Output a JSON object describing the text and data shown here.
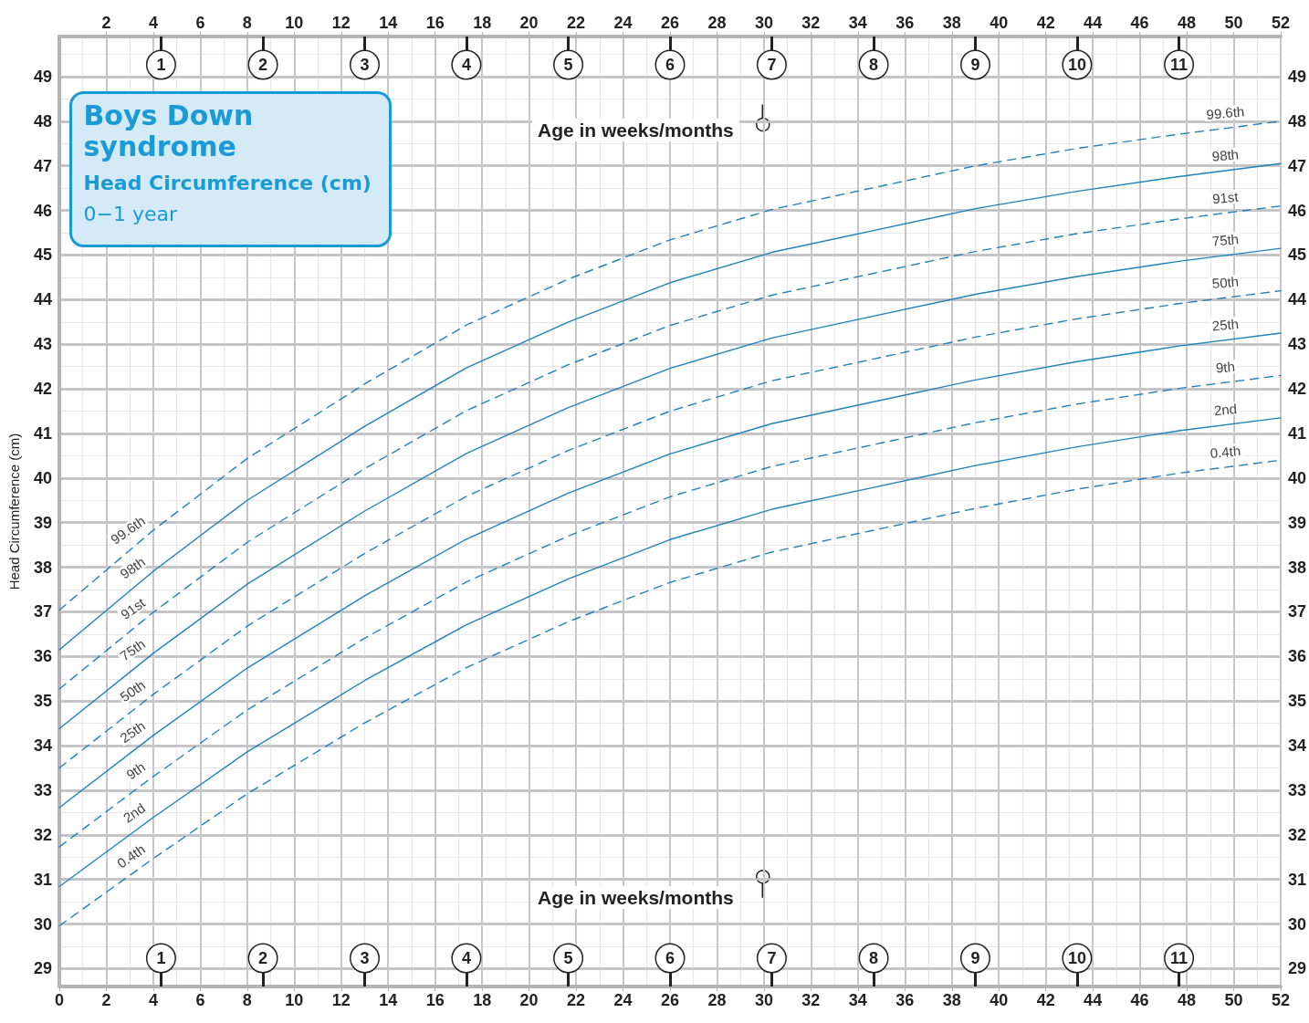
{
  "chart_data": {
    "type": "line",
    "title": "Boys Down syndrome",
    "subtitle": "Head Circumference (cm)",
    "annotations": [
      "0−1 year",
      {
        "text": "1",
        "x": 4.33
      },
      {
        "text": "2",
        "x": 8.67
      },
      {
        "text": "3",
        "x": 13
      },
      {
        "text": "4",
        "x": 17.33
      },
      {
        "text": "5",
        "x": 21.67
      },
      {
        "text": "6",
        "x": 26
      },
      {
        "text": "7",
        "x": 30.33
      },
      {
        "text": "8",
        "x": 34.67
      },
      {
        "text": "9",
        "x": 39
      },
      {
        "text": "10",
        "x": 43.33
      },
      {
        "text": "11",
        "x": 47.67
      }
    ],
    "xlabel": "Age in weeks/months",
    "x2label": "Age in weeks/months",
    "ylabel": "Head Circumference (cm)",
    "x": [
      0,
      4,
      8,
      13,
      17.33,
      21.67,
      26,
      30.33,
      34.67,
      39,
      43.33,
      47.67,
      52
    ],
    "xlim": [
      0,
      52
    ],
    "xticks": [
      0,
      2,
      4,
      6,
      8,
      10,
      12,
      14,
      16,
      18,
      20,
      22,
      24,
      26,
      28,
      30,
      32,
      34,
      36,
      38,
      40,
      42,
      44,
      46,
      48,
      50,
      52
    ],
    "x2lim": [
      0,
      52
    ],
    "x2ticks": [
      2,
      4,
      6,
      8,
      10,
      12,
      14,
      16,
      18,
      20,
      22,
      24,
      26,
      28,
      30,
      32,
      34,
      36,
      38,
      40,
      42,
      44,
      46,
      48,
      50,
      52
    ],
    "ylim": [
      28.6,
      49.9
    ],
    "yticks": [
      29,
      30,
      31,
      32,
      33,
      34,
      35,
      36,
      37,
      38,
      39,
      40,
      41,
      42,
      43,
      44,
      45,
      46,
      47,
      48,
      49
    ],
    "y2lim": [
      28.6,
      49.9
    ],
    "y2ticks": [
      29,
      30,
      31,
      32,
      33,
      34,
      35,
      36,
      37,
      38,
      39,
      40,
      41,
      42,
      43,
      44,
      45,
      46,
      47,
      48,
      49
    ],
    "grid": true,
    "legend": false,
    "marker": "none",
    "series": [
      {
        "name": "99.6th",
        "color": "#1f82b8",
        "line_style": "dashed",
        "values": [
          37.04,
          38.83,
          40.44,
          42.11,
          43.43,
          44.46,
          45.34,
          46.02,
          46.51,
          47.0,
          47.39,
          47.71,
          48.0
        ]
      },
      {
        "name": "98th",
        "color": "#1f82b8",
        "line_style": "solid",
        "values": [
          36.15,
          37.91,
          39.5,
          41.16,
          42.47,
          43.5,
          44.38,
          45.06,
          45.55,
          46.04,
          46.43,
          46.76,
          47.05
        ]
      },
      {
        "name": "91st",
        "color": "#1f82b8",
        "line_style": "dashed",
        "values": [
          35.27,
          36.99,
          38.56,
          40.21,
          41.51,
          42.54,
          43.42,
          44.1,
          44.59,
          45.08,
          45.48,
          45.81,
          46.1
        ]
      },
      {
        "name": "75th",
        "color": "#1f82b8",
        "line_style": "solid",
        "values": [
          34.38,
          36.07,
          37.62,
          39.26,
          40.55,
          41.58,
          42.46,
          43.14,
          43.63,
          44.12,
          44.52,
          44.86,
          45.15
        ]
      },
      {
        "name": "50th",
        "color": "#1f82b8",
        "line_style": "dashed",
        "values": [
          33.5,
          35.15,
          36.68,
          38.31,
          39.59,
          40.62,
          41.5,
          42.18,
          42.67,
          43.16,
          43.57,
          43.91,
          44.2
        ]
      },
      {
        "name": "25th",
        "color": "#1f82b8",
        "line_style": "solid",
        "values": [
          32.61,
          34.23,
          35.74,
          37.36,
          38.63,
          39.66,
          40.54,
          41.22,
          41.71,
          42.2,
          42.61,
          42.96,
          43.25
        ]
      },
      {
        "name": "9th",
        "color": "#1f82b8",
        "line_style": "dashed",
        "values": [
          31.73,
          33.31,
          34.8,
          36.41,
          37.67,
          38.7,
          39.58,
          40.26,
          40.75,
          41.24,
          41.66,
          42.01,
          42.3
        ]
      },
      {
        "name": "2nd",
        "color": "#1f82b8",
        "line_style": "solid",
        "values": [
          30.84,
          32.39,
          33.86,
          35.46,
          36.71,
          37.74,
          38.62,
          39.3,
          39.79,
          40.28,
          40.7,
          41.06,
          41.35
        ]
      },
      {
        "name": "0.4th",
        "color": "#1f82b8",
        "line_style": "dashed",
        "values": [
          29.96,
          31.47,
          32.92,
          34.51,
          35.75,
          36.78,
          37.66,
          38.34,
          38.83,
          39.32,
          39.75,
          40.11,
          40.4
        ]
      }
    ]
  }
}
